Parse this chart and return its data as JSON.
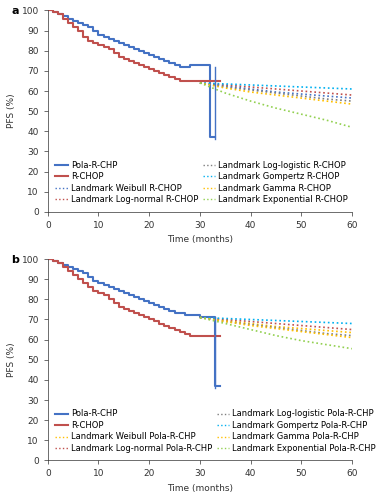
{
  "panel_a": {
    "title": "a",
    "ylabel": "PFS (%)",
    "xlabel": "Time (months)",
    "xlim": [
      0,
      60
    ],
    "ylim": [
      0,
      100
    ],
    "xticks": [
      0,
      10,
      20,
      30,
      40,
      50,
      60
    ],
    "yticks": [
      0,
      10,
      20,
      30,
      40,
      50,
      60,
      70,
      80,
      90,
      100
    ],
    "pola_rchp_km": {
      "x": [
        0,
        1,
        2,
        3,
        4,
        5,
        6,
        7,
        8,
        9,
        10,
        11,
        12,
        13,
        14,
        15,
        16,
        17,
        18,
        19,
        20,
        21,
        22,
        23,
        24,
        25,
        26,
        27,
        28,
        29,
        30,
        31,
        32,
        33
      ],
      "y": [
        100,
        99,
        98,
        97,
        96,
        95,
        94,
        93,
        92,
        90,
        88,
        87,
        86,
        85,
        84,
        83,
        82,
        81,
        80,
        79,
        78,
        77,
        76,
        75,
        74,
        73,
        72,
        72,
        73,
        73,
        73,
        73,
        37,
        37
      ],
      "color": "#4472C4",
      "lw": 1.5,
      "ls": "-"
    },
    "rchop_km": {
      "x": [
        0,
        1,
        2,
        3,
        4,
        5,
        6,
        7,
        8,
        9,
        10,
        11,
        12,
        13,
        14,
        15,
        16,
        17,
        18,
        19,
        20,
        21,
        22,
        23,
        24,
        25,
        26,
        27,
        28,
        29,
        30,
        31,
        32,
        33,
        34
      ],
      "y": [
        100,
        99,
        98,
        96,
        94,
        92,
        90,
        87,
        85,
        84,
        83,
        82,
        81,
        79,
        77,
        76,
        75,
        74,
        73,
        72,
        71,
        70,
        69,
        68,
        67,
        66,
        65,
        65,
        65,
        65,
        65,
        65,
        65,
        65,
        65
      ],
      "color": "#C0504D",
      "lw": 1.5,
      "ls": "-"
    },
    "landmark_lines_rchop": [
      {
        "label": "Landmark Weibull R-CHOP",
        "color": "#4472C4",
        "ls": ":",
        "lw": 1.2,
        "x": [
          30,
          35,
          40,
          45,
          50,
          55,
          60
        ],
        "y": [
          64,
          62.5,
          61,
          59.5,
          58.5,
          57.5,
          56.5
        ]
      },
      {
        "label": "Landmark Log-normal R-CHOP",
        "color": "#C0504D",
        "ls": ":",
        "lw": 1.2,
        "x": [
          30,
          35,
          40,
          45,
          50,
          55,
          60
        ],
        "y": [
          64,
          63,
          62,
          61,
          60,
          59,
          58
        ]
      },
      {
        "label": "Landmark Log-logistic R-CHOP",
        "color": "#7F7F7F",
        "ls": ":",
        "lw": 1.2,
        "x": [
          30,
          35,
          40,
          45,
          50,
          55,
          60
        ],
        "y": [
          64,
          62,
          60.5,
          59,
          57.5,
          56,
          55
        ]
      },
      {
        "label": "Landmark Gompertz R-CHOP",
        "color": "#00B0F0",
        "ls": ":",
        "lw": 1.2,
        "x": [
          30,
          35,
          40,
          45,
          50,
          55,
          60
        ],
        "y": [
          64,
          63.5,
          63,
          62.5,
          62,
          61.5,
          61
        ]
      },
      {
        "label": "Landmark Gamma R-CHOP",
        "color": "#FFC000",
        "ls": ":",
        "lw": 1.2,
        "x": [
          30,
          35,
          40,
          45,
          50,
          55,
          60
        ],
        "y": [
          64,
          61.5,
          59.5,
          58,
          56.5,
          55,
          53.5
        ]
      },
      {
        "label": "Landmark Exponential R-CHOP",
        "color": "#92D050",
        "ls": ":",
        "lw": 1.2,
        "x": [
          30,
          35,
          40,
          45,
          50,
          55,
          60
        ],
        "y": [
          64,
          59,
          55,
          51.5,
          48.5,
          45.5,
          42
        ]
      }
    ],
    "legend": [
      {
        "label": "Pola-R-CHP",
        "color": "#4472C4",
        "ls": "-"
      },
      {
        "label": "R-CHOP",
        "color": "#C0504D",
        "ls": "-"
      },
      {
        "label": "Landmark Weibull R-CHOP",
        "color": "#4472C4",
        "ls": ":"
      },
      {
        "label": "Landmark Log-normal R-CHOP",
        "color": "#C0504D",
        "ls": ":"
      },
      {
        "label": "Landmark Log-logistic R-CHOP",
        "color": "#7F7F7F",
        "ls": ":"
      },
      {
        "label": "Landmark Gompertz R-CHOP",
        "color": "#00B0F0",
        "ls": ":"
      },
      {
        "label": "Landmark Gamma R-CHOP",
        "color": "#FFC000",
        "ls": ":"
      },
      {
        "label": "Landmark Exponential R-CHOP",
        "color": "#92D050",
        "ls": ":"
      }
    ]
  },
  "panel_b": {
    "title": "b",
    "ylabel": "PFS (%)",
    "xlabel": "Time (months)",
    "xlim": [
      0,
      60
    ],
    "ylim": [
      0,
      100
    ],
    "xticks": [
      0,
      10,
      20,
      30,
      40,
      50,
      60
    ],
    "yticks": [
      0,
      10,
      20,
      30,
      40,
      50,
      60,
      70,
      80,
      90,
      100
    ],
    "pola_rchp_km": {
      "x": [
        0,
        1,
        2,
        3,
        4,
        5,
        6,
        7,
        8,
        9,
        10,
        11,
        12,
        13,
        14,
        15,
        16,
        17,
        18,
        19,
        20,
        21,
        22,
        23,
        24,
        25,
        26,
        27,
        28,
        29,
        30,
        31,
        32,
        33,
        34
      ],
      "y": [
        100,
        99,
        98,
        97,
        96,
        95,
        94,
        93,
        91,
        89,
        88,
        87,
        86,
        85,
        84,
        83,
        82,
        81,
        80,
        79,
        78,
        77,
        76,
        75,
        74,
        73,
        73,
        72,
        72,
        72,
        71,
        71,
        71,
        37,
        37
      ],
      "color": "#4472C4",
      "lw": 1.5,
      "ls": "-"
    },
    "rchop_km": {
      "x": [
        0,
        1,
        2,
        3,
        4,
        5,
        6,
        7,
        8,
        9,
        10,
        11,
        12,
        13,
        14,
        15,
        16,
        17,
        18,
        19,
        20,
        21,
        22,
        23,
        24,
        25,
        26,
        27,
        28,
        29,
        30,
        31,
        32,
        33,
        34
      ],
      "y": [
        100,
        99,
        98,
        96,
        94,
        92,
        90,
        88,
        86,
        84,
        83,
        82,
        80,
        78,
        76,
        75,
        74,
        73,
        72,
        71,
        70,
        69,
        68,
        67,
        66,
        65,
        64,
        63,
        62,
        62,
        62,
        62,
        62,
        62,
        62
      ],
      "color": "#C0504D",
      "lw": 1.5,
      "ls": "-"
    },
    "landmark_lines_pola": [
      {
        "label": "Landmark Weibull Pola-R-CHP",
        "color": "#FFC000",
        "ls": ":",
        "lw": 1.2,
        "x": [
          30,
          35,
          40,
          45,
          50,
          55,
          60
        ],
        "y": [
          71,
          69.5,
          68,
          66.5,
          65.5,
          64.5,
          63.5
        ]
      },
      {
        "label": "Landmark Log-normal Pola-R-CHP",
        "color": "#C0504D",
        "ls": ":",
        "lw": 1.2,
        "x": [
          30,
          35,
          40,
          45,
          50,
          55,
          60
        ],
        "y": [
          71,
          70,
          69,
          68,
          67,
          66,
          65
        ]
      },
      {
        "label": "Landmark Log-logistic Pola-R-CHP",
        "color": "#7F7F7F",
        "ls": ":",
        "lw": 1.2,
        "x": [
          30,
          35,
          40,
          45,
          50,
          55,
          60
        ],
        "y": [
          71,
          69,
          67.5,
          66,
          64.5,
          63,
          62
        ]
      },
      {
        "label": "Landmark Gompertz Pola-R-CHP",
        "color": "#00B0F0",
        "ls": ":",
        "lw": 1.2,
        "x": [
          30,
          35,
          40,
          45,
          50,
          55,
          60
        ],
        "y": [
          71,
          70.5,
          70,
          69.5,
          69,
          68.5,
          68
        ]
      },
      {
        "label": "Landmark Gamma Pola-R-CHP",
        "color": "#FFC000",
        "ls": ":",
        "lw": 1.2,
        "x": [
          30,
          35,
          40,
          45,
          50,
          55,
          60
        ],
        "y": [
          71,
          69,
          67,
          65.5,
          64,
          62.5,
          61
        ]
      },
      {
        "label": "Landmark Exponential Pola-R-CHP",
        "color": "#92D050",
        "ls": ":",
        "lw": 1.2,
        "x": [
          30,
          35,
          40,
          45,
          50,
          55,
          60
        ],
        "y": [
          71,
          68,
          65,
          62,
          59.5,
          57.5,
          55.5
        ]
      }
    ],
    "legend": [
      {
        "label": "Pola-R-CHP",
        "color": "#4472C4",
        "ls": "-"
      },
      {
        "label": "R-CHOP",
        "color": "#C0504D",
        "ls": "-"
      },
      {
        "label": "Landmark Weibull Pola-R-CHP",
        "color": "#FFC000",
        "ls": ":"
      },
      {
        "label": "Landmark Log-normal Pola-R-CHP",
        "color": "#C0504D",
        "ls": ":"
      },
      {
        "label": "Landmark Log-logistic Pola-R-CHP",
        "color": "#7F7F7F",
        "ls": ":"
      },
      {
        "label": "Landmark Gompertz Pola-R-CHP",
        "color": "#00B0F0",
        "ls": ":"
      },
      {
        "label": "Landmark Gamma Pola-R-CHP",
        "color": "#FFC000",
        "ls": ":"
      },
      {
        "label": "Landmark Exponential Pola-R-CHP",
        "color": "#92D050",
        "ls": ":"
      }
    ]
  },
  "bg_color": "#FFFFFF",
  "font_size": 6.5,
  "axis_color": "#333333"
}
